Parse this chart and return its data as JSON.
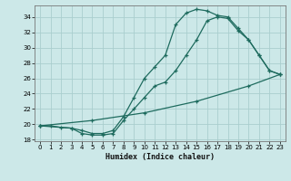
{
  "xlabel": "Humidex (Indice chaleur)",
  "bg_color": "#cce8e8",
  "grid_color": "#aacece",
  "line_color": "#1e6b5e",
  "xlim": [
    -0.5,
    23.5
  ],
  "ylim": [
    17.8,
    35.5
  ],
  "xticks": [
    0,
    1,
    2,
    3,
    4,
    5,
    6,
    7,
    8,
    9,
    10,
    11,
    12,
    13,
    14,
    15,
    16,
    17,
    18,
    19,
    20,
    21,
    22,
    23
  ],
  "yticks": [
    18,
    20,
    22,
    24,
    26,
    28,
    30,
    32,
    34
  ],
  "line1_x": [
    0,
    1,
    2,
    3,
    4,
    5,
    6,
    7,
    8,
    9,
    10,
    11,
    12,
    13,
    14,
    15,
    16,
    17,
    18,
    19,
    20,
    21,
    22,
    23
  ],
  "line1_y": [
    19.8,
    19.8,
    19.6,
    19.5,
    19.2,
    18.8,
    18.8,
    19.2,
    21.0,
    23.5,
    26.0,
    27.5,
    29.0,
    33.0,
    34.5,
    35.0,
    34.8,
    34.2,
    34.0,
    32.5,
    31.0,
    29.0,
    27.0,
    26.5
  ],
  "line2_x": [
    0,
    3,
    4,
    5,
    6,
    7,
    8,
    9,
    10,
    11,
    12,
    13,
    14,
    15,
    16,
    17,
    18,
    19,
    20,
    21,
    22,
    23
  ],
  "line2_y": [
    19.8,
    19.5,
    18.8,
    18.6,
    18.6,
    18.8,
    20.5,
    22.0,
    23.5,
    25.0,
    25.5,
    27.0,
    29.0,
    31.0,
    33.5,
    34.0,
    33.8,
    32.2,
    31.0,
    29.0,
    27.0,
    26.5
  ],
  "line3_x": [
    0,
    5,
    10,
    15,
    20,
    23
  ],
  "line3_y": [
    19.8,
    20.5,
    21.5,
    23.0,
    25.0,
    26.5
  ]
}
